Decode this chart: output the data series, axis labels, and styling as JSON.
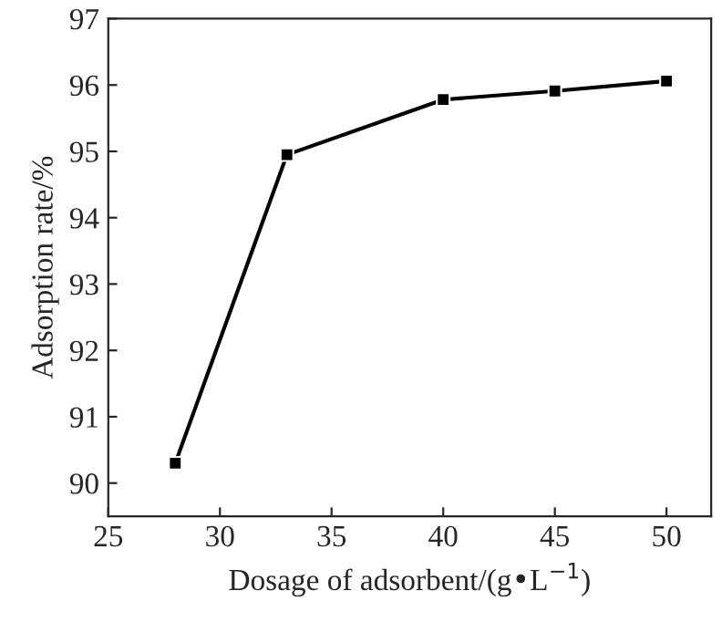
{
  "chart_data": {
    "type": "line",
    "xlabel": "Dosage of adsorbent/(g•L$^{−1}$)",
    "ylabel": "Adsorption rate/%",
    "x": [
      28,
      33,
      40,
      45,
      50
    ],
    "series": [
      {
        "color": "#000000",
        "values": [
          90.3,
          94.95,
          95.78,
          95.91,
          96.06
        ]
      }
    ],
    "xlim": [
      25,
      52
    ],
    "xticks": [
      25,
      30,
      35,
      40,
      45,
      50
    ],
    "ylim": [
      89.5,
      97
    ],
    "yticks": [
      90,
      91,
      92,
      93,
      94,
      95,
      96,
      97
    ],
    "marker": "square",
    "line_style": "solid",
    "grid": false
  }
}
